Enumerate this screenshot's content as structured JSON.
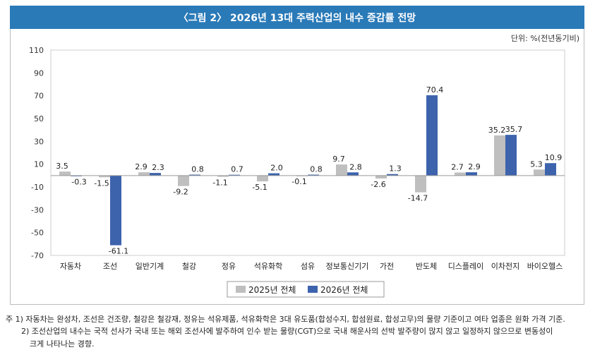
{
  "title": "〈그림 2〉 2026년 13대 주력산업의 내수 증감률 전망",
  "unit": "단위: %(전년동기비)",
  "chart_data": {
    "type": "bar",
    "title": "〈그림 2〉 2026년 13대 주력산업의 내수 증감률 전망",
    "ylabel": "%(전년동기비)",
    "ylim": [
      -70,
      110
    ],
    "yticks": [
      110,
      90,
      70,
      50,
      30,
      10,
      -10,
      -30,
      -50,
      -70
    ],
    "categories": [
      "자동차",
      "조선",
      "일반기계",
      "철강",
      "정유",
      "석유화학",
      "섬유",
      "정보통신기기",
      "가전",
      "반도체",
      "디스플레이",
      "이차전지",
      "바이오헬스"
    ],
    "series": [
      {
        "name": "2025년 전체",
        "color": "#bfbfbf",
        "values": [
          3.5,
          -1.5,
          2.9,
          -9.2,
          -1.1,
          -5.1,
          -0.1,
          9.7,
          -2.6,
          -14.7,
          2.7,
          35.2,
          5.3
        ]
      },
      {
        "name": "2026년 전체",
        "color": "#3d63ad",
        "values": [
          -0.3,
          -61.1,
          2.3,
          0.8,
          0.7,
          2.0,
          0.8,
          2.8,
          1.3,
          70.4,
          2.9,
          35.7,
          10.9
        ]
      }
    ],
    "legend": "bottom-center"
  },
  "notes": [
    "주 1) 자동차는 완성차, 조선은 건조량, 철강은 철강재, 정유는 석유제품, 석유화학은 3대 유도품(합성수지, 합섬원료, 합성고무)의 물량 기준이고 여타 업종은 원화 가격 기준.",
    "2) 조선산업의 내수는 국적 선사가 국내 또는 해외 조선사에 발주하여 인수 받는 물량(CGT)으로 국내 해운사의 선박 발주량이 많지 않고 일정하지 않으므로 변동성이",
    "크게 나타나는 경향."
  ]
}
